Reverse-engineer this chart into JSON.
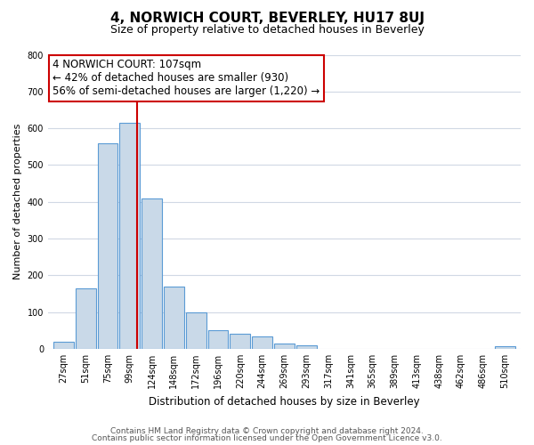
{
  "title": "4, NORWICH COURT, BEVERLEY, HU17 8UJ",
  "subtitle": "Size of property relative to detached houses in Beverley",
  "xlabel": "Distribution of detached houses by size in Beverley",
  "ylabel": "Number of detached properties",
  "bar_labels": [
    "27sqm",
    "51sqm",
    "75sqm",
    "99sqm",
    "124sqm",
    "148sqm",
    "172sqm",
    "196sqm",
    "220sqm",
    "244sqm",
    "269sqm",
    "293sqm",
    "317sqm",
    "341sqm",
    "365sqm",
    "389sqm",
    "413sqm",
    "438sqm",
    "462sqm",
    "486sqm",
    "510sqm"
  ],
  "bar_values": [
    20,
    165,
    560,
    615,
    410,
    170,
    100,
    50,
    40,
    33,
    15,
    10,
    0,
    0,
    0,
    0,
    0,
    0,
    0,
    0,
    8
  ],
  "bar_color": "#c9d9e8",
  "bar_edge_color": "#5b9bd5",
  "property_line_color": "#cc0000",
  "annotation_line1": "4 NORWICH COURT: 107sqm",
  "annotation_line2": "← 42% of detached houses are smaller (930)",
  "annotation_line3": "56% of semi-detached houses are larger (1,220) →",
  "annotation_box_color": "#ffffff",
  "annotation_box_edge": "#cc0000",
  "ylim": [
    0,
    800
  ],
  "yticks": [
    0,
    100,
    200,
    300,
    400,
    500,
    600,
    700,
    800
  ],
  "footer_line1": "Contains HM Land Registry data © Crown copyright and database right 2024.",
  "footer_line2": "Contains public sector information licensed under the Open Government Licence v3.0.",
  "background_color": "#ffffff",
  "grid_color": "#d0d8e4",
  "title_fontsize": 11,
  "subtitle_fontsize": 9,
  "annotation_fontsize": 8.5,
  "ylabel_fontsize": 8,
  "xlabel_fontsize": 8.5,
  "tick_fontsize": 7,
  "footer_fontsize": 6.5
}
